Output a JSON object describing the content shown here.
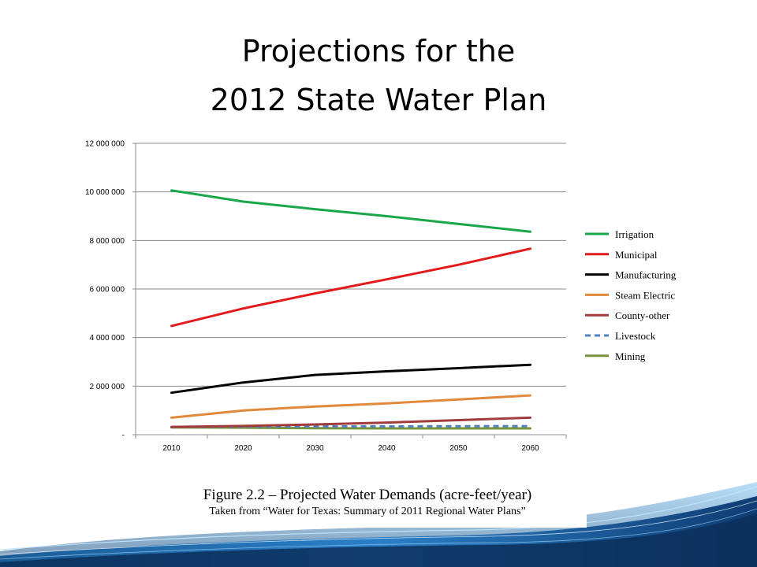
{
  "slide": {
    "title_line1": "Projections for the",
    "title_line2": "2012 State Water Plan"
  },
  "caption": {
    "main": "Figure 2.2 – Projected Water Demands (acre-feet/year)",
    "sub": "Taken from “Water for Texas: Summary of 2011 Regional Water Plans”"
  },
  "chart_data": {
    "type": "line",
    "title": "",
    "xlabel": "",
    "ylabel": "",
    "x": [
      2010,
      2020,
      2030,
      2040,
      2050,
      2060
    ],
    "x_tick_labels": [
      "2010",
      "2020",
      "2030",
      "2040",
      "2050",
      "2060"
    ],
    "ylim": [
      0,
      12000000
    ],
    "y_ticks": [
      0,
      2000000,
      4000000,
      6000000,
      8000000,
      10000000,
      12000000
    ],
    "y_tick_labels": [
      "-",
      "2 000 000",
      "4 000 000",
      "6 000 000",
      "8 000 000",
      "10 000 000",
      "12 000 000"
    ],
    "grid": "horizontal",
    "legend_position": "right",
    "series": [
      {
        "name": "Irrigation",
        "color": "#1aa64a",
        "dash": "solid",
        "values": [
          10060000,
          9600000,
          9290000,
          9000000,
          8680000,
          8360000
        ]
      },
      {
        "name": "Municipal",
        "color": "#e31a1c",
        "dash": "solid",
        "values": [
          4480000,
          5200000,
          5820000,
          6400000,
          7000000,
          7660000
        ]
      },
      {
        "name": "Manufacturing",
        "color": "#000000",
        "dash": "solid",
        "values": [
          1730000,
          2150000,
          2460000,
          2610000,
          2740000,
          2880000
        ]
      },
      {
        "name": "Steam Electric",
        "color": "#e08a3c",
        "dash": "solid",
        "values": [
          700000,
          1000000,
          1160000,
          1290000,
          1450000,
          1620000
        ]
      },
      {
        "name": "County-other",
        "color": "#a23b3b",
        "dash": "solid",
        "values": [
          320000,
          360000,
          420000,
          500000,
          600000,
          700000
        ]
      },
      {
        "name": "Livestock",
        "color": "#4f81bd",
        "dash": "dashed",
        "values": [
          320000,
          330000,
          340000,
          345000,
          350000,
          355000
        ]
      },
      {
        "name": "Mining",
        "color": "#77933c",
        "dash": "solid",
        "values": [
          300000,
          290000,
          270000,
          260000,
          260000,
          260000
        ]
      }
    ]
  }
}
